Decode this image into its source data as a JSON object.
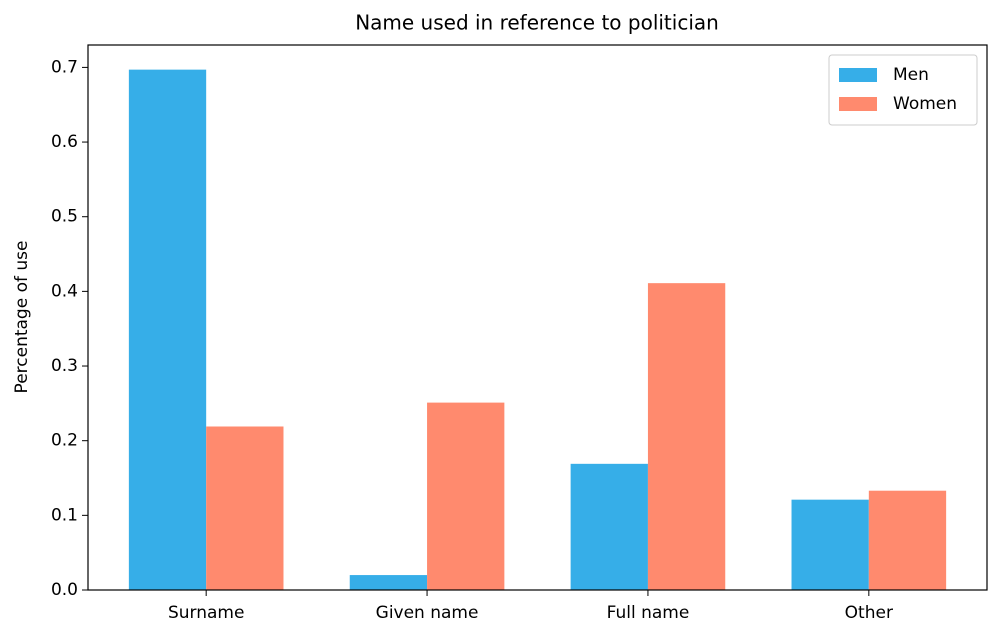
{
  "chart_data": {
    "type": "bar",
    "title": "Name used in reference to politician",
    "y_label": "Percentage of use",
    "categories": [
      "Surname",
      "Given name",
      "Full name",
      "Other"
    ],
    "series": [
      {
        "name": "Men",
        "color": "#36aee8",
        "values": [
          0.697,
          0.02,
          0.169,
          0.121
        ]
      },
      {
        "name": "Women",
        "color": "#ff8a6e",
        "values": [
          0.219,
          0.251,
          0.411,
          0.133
        ]
      }
    ],
    "ylim": [
      0,
      0.73
    ],
    "yticks": [
      {
        "value": 0,
        "label": "0.0"
      },
      0.1,
      0.2,
      0.3,
      0.4,
      0.5,
      0.6,
      0.7
    ],
    "grid": false,
    "legend": "upper right"
  }
}
